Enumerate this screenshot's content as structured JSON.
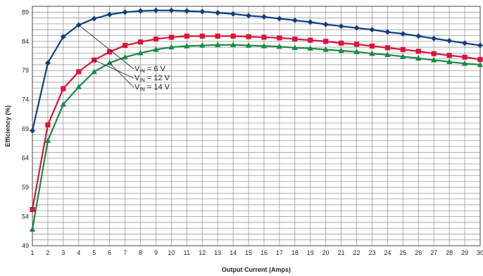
{
  "chart_data": {
    "type": "line",
    "xlabel": "Output Current (Amps)",
    "ylabel": "Efficiency (%)",
    "xlim": [
      1,
      30
    ],
    "ylim": [
      49,
      90
    ],
    "xticks": [
      1,
      2,
      3,
      4,
      5,
      6,
      7,
      8,
      9,
      10,
      11,
      12,
      13,
      14,
      15,
      16,
      17,
      18,
      19,
      20,
      21,
      22,
      23,
      24,
      25,
      26,
      27,
      28,
      29,
      30
    ],
    "yticks": [
      49,
      54,
      59,
      64,
      69,
      74,
      79,
      84,
      89
    ],
    "grid": true,
    "x": [
      1,
      2,
      3,
      4,
      5,
      6,
      7,
      8,
      9,
      10,
      11,
      12,
      13,
      14,
      15,
      16,
      17,
      18,
      19,
      20,
      21,
      22,
      23,
      24,
      25,
      26,
      27,
      28,
      29,
      30
    ],
    "series": [
      {
        "name": "VIN = 6 V",
        "label_main": "V",
        "label_sub": "IN",
        "label_rest": " = 6 V",
        "color": "#0f3f82",
        "marker": "diamond",
        "values": [
          68.7,
          80.3,
          84.8,
          86.8,
          87.9,
          88.6,
          89.0,
          89.2,
          89.3,
          89.3,
          89.2,
          89.1,
          88.9,
          88.7,
          88.4,
          88.2,
          87.9,
          87.6,
          87.3,
          86.9,
          86.6,
          86.3,
          86.0,
          85.6,
          85.3,
          84.9,
          84.5,
          84.1,
          83.7,
          83.3
        ]
      },
      {
        "name": "VIN = 12 V",
        "label_main": "V",
        "label_sub": "IN",
        "label_rest": " = 12 V",
        "color": "#d9143c",
        "marker": "square",
        "values": [
          55.2,
          69.7,
          75.9,
          78.8,
          80.8,
          82.2,
          83.3,
          83.9,
          84.4,
          84.7,
          84.9,
          84.9,
          84.9,
          84.9,
          84.8,
          84.7,
          84.6,
          84.4,
          84.2,
          84.0,
          83.7,
          83.5,
          83.2,
          82.9,
          82.6,
          82.3,
          81.9,
          81.6,
          81.3,
          80.9
        ]
      },
      {
        "name": "VIN = 14 V",
        "label_main": "V",
        "label_sub": "IN",
        "label_rest": " = 14 V",
        "color": "#1a8a45",
        "marker": "triangle",
        "values": [
          51.8,
          67.0,
          73.2,
          76.2,
          78.8,
          80.3,
          81.3,
          82.0,
          82.6,
          83.0,
          83.2,
          83.3,
          83.4,
          83.4,
          83.3,
          83.2,
          83.1,
          82.9,
          82.8,
          82.6,
          82.4,
          82.2,
          81.9,
          81.7,
          81.4,
          81.1,
          80.8,
          80.5,
          80.2,
          80.0
        ]
      }
    ],
    "annotations": [
      {
        "series": 0,
        "point_x": 4,
        "point_y": 86.8
      },
      {
        "series": 1,
        "point_x": 5,
        "point_y": 80.8
      },
      {
        "series": 2,
        "point_x": 6,
        "point_y": 80.3
      }
    ]
  }
}
